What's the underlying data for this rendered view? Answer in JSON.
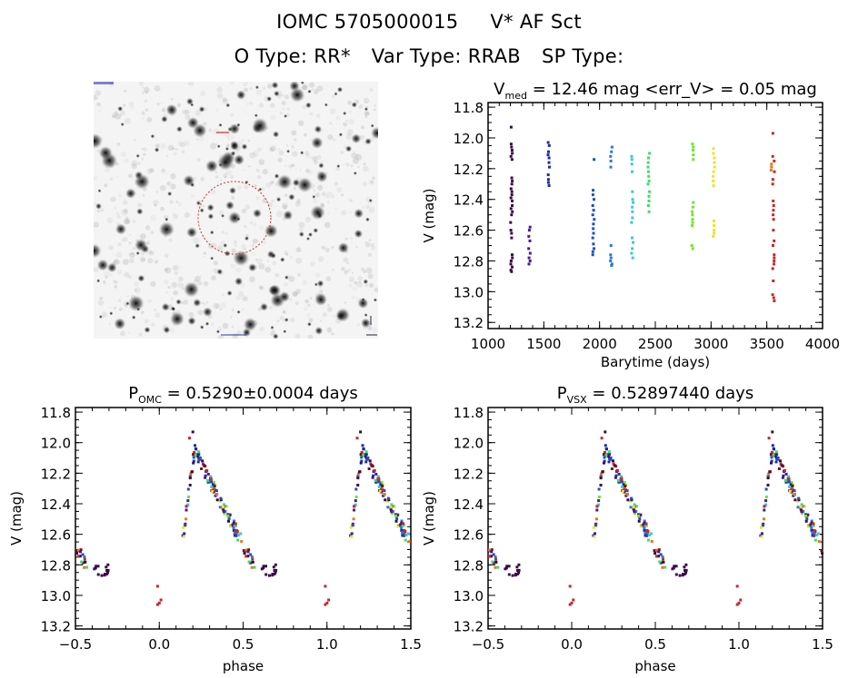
{
  "header": {
    "star_name": "IOMC 5705000015",
    "simbad_name": "V* AF Sct",
    "otype_label": "O Type: RR*",
    "vartype_label": "Var Type: RRAB",
    "sptype_label": "SP Type:"
  },
  "finder_chart": {
    "description": "grayscale star field finder chart with red circle marking target",
    "circle_color": "#c0392b"
  },
  "chart_data": [
    {
      "id": "lightcurve",
      "type": "scatter",
      "title_main": "V",
      "title_sub": "med",
      "title_rest": " = 12.46 mag <err_V> = 0.05 mag",
      "xlabel": "Barytime (days)",
      "ylabel": "V (mag)",
      "xlim": [
        1000,
        4000
      ],
      "ylim": [
        13.24,
        11.77
      ],
      "xticks": [
        1000,
        1500,
        2000,
        2500,
        3000,
        3500,
        4000
      ],
      "xtick_labels": [
        "1000",
        "1500",
        "2000",
        "2500",
        "3000",
        "3500",
        "4000"
      ],
      "yticks": [
        11.8,
        12.0,
        12.2,
        12.4,
        12.6,
        12.8,
        13.0,
        13.2
      ],
      "ytick_labels": [
        "11.8",
        "12.0",
        "12.2",
        "12.4",
        "12.6",
        "12.8",
        "13.0",
        "13.2"
      ],
      "series": [
        {
          "name": "season-1",
          "color": "#3b0a4a",
          "x": 1210,
          "y": [
            11.93,
            12.04,
            12.06,
            12.08,
            12.1,
            12.12,
            12.14,
            12.26,
            12.28,
            12.3,
            12.33,
            12.35,
            12.37,
            12.39,
            12.41,
            12.44,
            12.46,
            12.48,
            12.5,
            12.55,
            12.6,
            12.62,
            12.65,
            12.76,
            12.78,
            12.8,
            12.82,
            12.84,
            12.86,
            12.87
          ]
        },
        {
          "name": "season-2",
          "color": "#4b1a8c",
          "x": 1370,
          "y": [
            12.58,
            12.6,
            12.64,
            12.67,
            12.72,
            12.75,
            12.78,
            12.8,
            12.82
          ]
        },
        {
          "name": "season-3",
          "color": "#1f2aa8",
          "x": 1545,
          "y": [
            12.03,
            12.05,
            12.09,
            12.11,
            12.13,
            12.16,
            12.19,
            12.24,
            12.27,
            12.29,
            12.31
          ]
        },
        {
          "name": "season-4",
          "color": "#1c4fc8",
          "x": 1945,
          "y": [
            12.14,
            12.34,
            12.37,
            12.4,
            12.44,
            12.47,
            12.5,
            12.53,
            12.56,
            12.59,
            12.62,
            12.65,
            12.69,
            12.72,
            12.74,
            12.76
          ]
        },
        {
          "name": "season-5",
          "color": "#2a7bd6",
          "x": 2105,
          "y": [
            12.06,
            12.09,
            12.12,
            12.15,
            12.19,
            12.7,
            12.76,
            12.78,
            12.8,
            12.82,
            12.83
          ]
        },
        {
          "name": "season-6",
          "color": "#3cc8d8",
          "x": 2295,
          "y": [
            12.12,
            12.14,
            12.17,
            12.22,
            12.35,
            12.4,
            12.42,
            12.45,
            12.48,
            12.52,
            12.55,
            12.65,
            12.68,
            12.72,
            12.75,
            12.78
          ]
        },
        {
          "name": "season-7",
          "color": "#3ddc6a",
          "x": 2440,
          "y": [
            12.1,
            12.13,
            12.16,
            12.19,
            12.22,
            12.25,
            12.28,
            12.3,
            12.35,
            12.38,
            12.41,
            12.44,
            12.48
          ]
        },
        {
          "name": "season-8",
          "color": "#6ee62a",
          "x": 2835,
          "y": [
            12.04,
            12.06,
            12.08,
            12.11,
            12.14,
            12.42,
            12.45,
            12.48,
            12.5,
            12.53,
            12.55,
            12.57,
            12.7,
            12.72
          ]
        },
        {
          "name": "season-9",
          "color": "#e6e62a",
          "x": 3025,
          "y": [
            12.07,
            12.1,
            12.13,
            12.16,
            12.19,
            12.22,
            12.25,
            12.28,
            12.31,
            12.54,
            12.57,
            12.6,
            12.62,
            12.64
          ]
        },
        {
          "name": "season-10",
          "color": "#e07a20",
          "x": 3535,
          "y": [
            12.17,
            12.19,
            12.21
          ]
        },
        {
          "name": "season-11",
          "color": "#c62828",
          "x": 3560,
          "y": [
            11.97,
            12.12,
            12.15,
            12.22,
            12.27,
            12.3,
            12.41,
            12.44,
            12.47,
            12.5,
            12.53,
            12.6,
            12.67,
            12.7,
            12.76,
            12.78,
            12.8,
            12.82,
            12.85,
            12.93,
            13.02,
            13.04,
            13.06
          ]
        }
      ]
    },
    {
      "id": "phased-omc",
      "type": "scatter",
      "title_main": "P",
      "title_sub": "OMC",
      "title_rest": " = 0.5290±0.0004 days",
      "xlabel": "phase",
      "ylabel": "V (mag)",
      "xlim": [
        -0.5,
        1.5
      ],
      "ylim": [
        13.22,
        11.77
      ],
      "xticks": [
        -0.5,
        0.0,
        0.5,
        1.0,
        1.5
      ],
      "xtick_labels": [
        "−0.5",
        "0.0",
        "0.5",
        "1.0",
        "1.5"
      ],
      "yticks": [
        11.8,
        12.0,
        12.2,
        12.4,
        12.6,
        12.8,
        13.0,
        13.2
      ],
      "ytick_labels": [
        "11.8",
        "12.0",
        "12.2",
        "12.4",
        "12.6",
        "12.8",
        "13.0",
        "13.2"
      ],
      "phase_curve": {
        "rise_start": [
          0.14,
          12.62
        ],
        "peak": [
          0.21,
          12.05
        ],
        "decline_end": [
          0.57,
          12.82
        ],
        "minimum_cluster": [
          0.66,
          12.82
        ],
        "outliers": [
          [
            -0.01,
            12.94
          ],
          [
            0.0,
            13.05
          ],
          [
            0.01,
            13.03
          ],
          [
            -0.01,
            13.06
          ]
        ]
      }
    },
    {
      "id": "phased-vsx",
      "type": "scatter",
      "title_main": "P",
      "title_sub": "VSX",
      "title_rest": " = 0.52897440 days",
      "xlabel": "phase",
      "ylabel": "V (mag)",
      "xlim": [
        -0.5,
        1.5
      ],
      "ylim": [
        13.22,
        11.77
      ],
      "xticks": [
        -0.5,
        0.0,
        0.5,
        1.0,
        1.5
      ],
      "xtick_labels": [
        "−0.5",
        "0.0",
        "0.5",
        "1.0",
        "1.5"
      ],
      "yticks": [
        11.8,
        12.0,
        12.2,
        12.4,
        12.6,
        12.8,
        13.0,
        13.2
      ],
      "ytick_labels": [
        "11.8",
        "12.0",
        "12.2",
        "12.4",
        "12.6",
        "12.8",
        "13.0",
        "13.2"
      ],
      "phase_curve": {
        "rise_start": [
          0.13,
          12.62
        ],
        "peak": [
          0.2,
          12.05
        ],
        "decline_end": [
          0.56,
          12.82
        ],
        "minimum_cluster": [
          0.65,
          12.82
        ],
        "outliers": [
          [
            -0.01,
            12.94
          ],
          [
            0.0,
            13.05
          ],
          [
            0.01,
            13.03
          ],
          [
            -0.01,
            13.06
          ]
        ]
      }
    }
  ]
}
